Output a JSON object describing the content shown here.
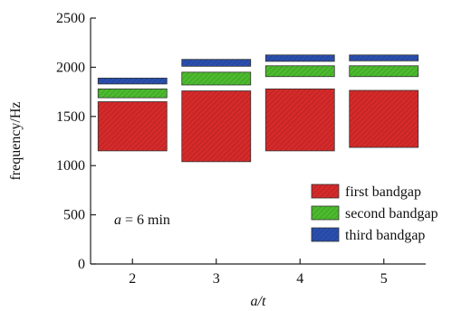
{
  "chart_data": {
    "type": "bar",
    "xlabel": "a/t",
    "ylabel": "frequency/Hz",
    "annotation": {
      "var": "a",
      "text": " = 6 min"
    },
    "categories": [
      "2",
      "3",
      "4",
      "5"
    ],
    "ylim": [
      0,
      2500
    ],
    "yticks": [
      "0",
      "500",
      "1000",
      "1500",
      "2000",
      "2500"
    ],
    "grid": false,
    "legend_position": "bottom-right",
    "series": [
      {
        "name": "first bandgap",
        "color": "#d62a2a",
        "ranges": [
          [
            1150,
            1650
          ],
          [
            1040,
            1760
          ],
          [
            1150,
            1780
          ],
          [
            1185,
            1765
          ]
        ]
      },
      {
        "name": "second bandgap",
        "color": "#4cbb2e",
        "ranges": [
          [
            1690,
            1780
          ],
          [
            1820,
            1950
          ],
          [
            1905,
            2015
          ],
          [
            1905,
            2015
          ]
        ]
      },
      {
        "name": "third bandgap",
        "color": "#2a4fae",
        "ranges": [
          [
            1830,
            1890
          ],
          [
            2010,
            2080
          ],
          [
            2060,
            2125
          ],
          [
            2065,
            2125
          ]
        ]
      }
    ]
  }
}
